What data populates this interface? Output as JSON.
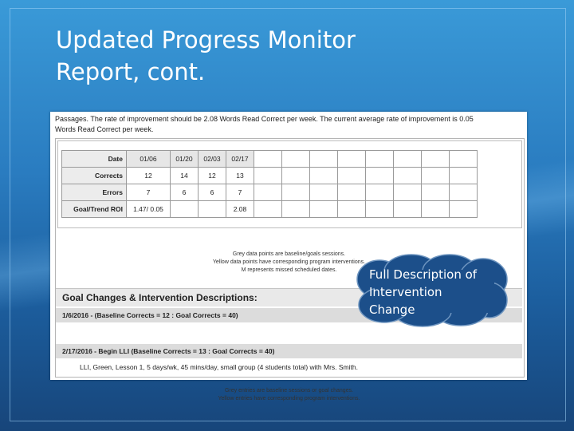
{
  "slide": {
    "title_line1": "Updated Progress Monitor",
    "title_line2": "Report, cont."
  },
  "report": {
    "passages_line1": "Passages.  The rate of improvement should be 2.08 Words Read Correct per week.  The current average rate of improvement is 0.05",
    "passages_line2": "Words Read Correct per week.",
    "table": {
      "row_labels": [
        "Date",
        "Corrects",
        "Errors",
        "Goal/Trend ROI"
      ],
      "dates": [
        "01/06",
        "01/20",
        "02/03",
        "02/17"
      ],
      "corrects": [
        "12",
        "14",
        "12",
        "13"
      ],
      "errors": [
        "7",
        "6",
        "6",
        "7"
      ],
      "roi_first": "1.47/ 0.05",
      "roi_last": "2.08"
    },
    "legend": [
      "Grey data points are baseline/goals sessions.",
      "Yellow data points have corresponding program interventions.",
      "M represents missed scheduled dates."
    ],
    "goal_title": "Goal Changes & Intervention Descriptions:",
    "goal_row1": "1/6/2016 - (Baseline Corrects = 12 : Goal Corrects = 40)",
    "goal_row2": "2/17/2016 - Begin LLI (Baseline Corrects = 13 : Goal Corrects = 40)",
    "lli_description": "LLI, Green, Lesson 1, 5 days/wk, 45 mins/day, small group (4 students total) with Mrs. Smith.",
    "footer_notes": [
      "Grey entries are baseline sessions or goal changes.",
      "Yellow entries have corresponding program interventions."
    ]
  },
  "callout": {
    "line1": "Full Description of",
    "line2": "Intervention",
    "line3": "Change",
    "fill_color": "#1c4f8a"
  }
}
